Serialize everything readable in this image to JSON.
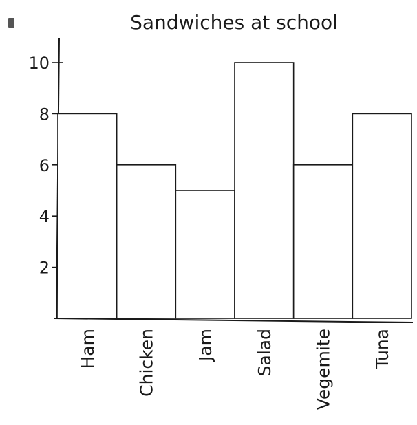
{
  "chart_data": {
    "type": "bar",
    "title": "Sandwiches at school",
    "xlabel": "",
    "ylabel": "",
    "categories": [
      "Ham",
      "Chicken",
      "Jam",
      "Salad",
      "Vegemite",
      "Tuna"
    ],
    "values": [
      8,
      6,
      5,
      10,
      6,
      8
    ],
    "ylim": [
      0,
      10
    ],
    "yticks": [
      2,
      4,
      6,
      8,
      10
    ],
    "grid": false,
    "colors": {
      "bar_fill": "#ffffff",
      "stroke": "#1a1a1a"
    }
  }
}
